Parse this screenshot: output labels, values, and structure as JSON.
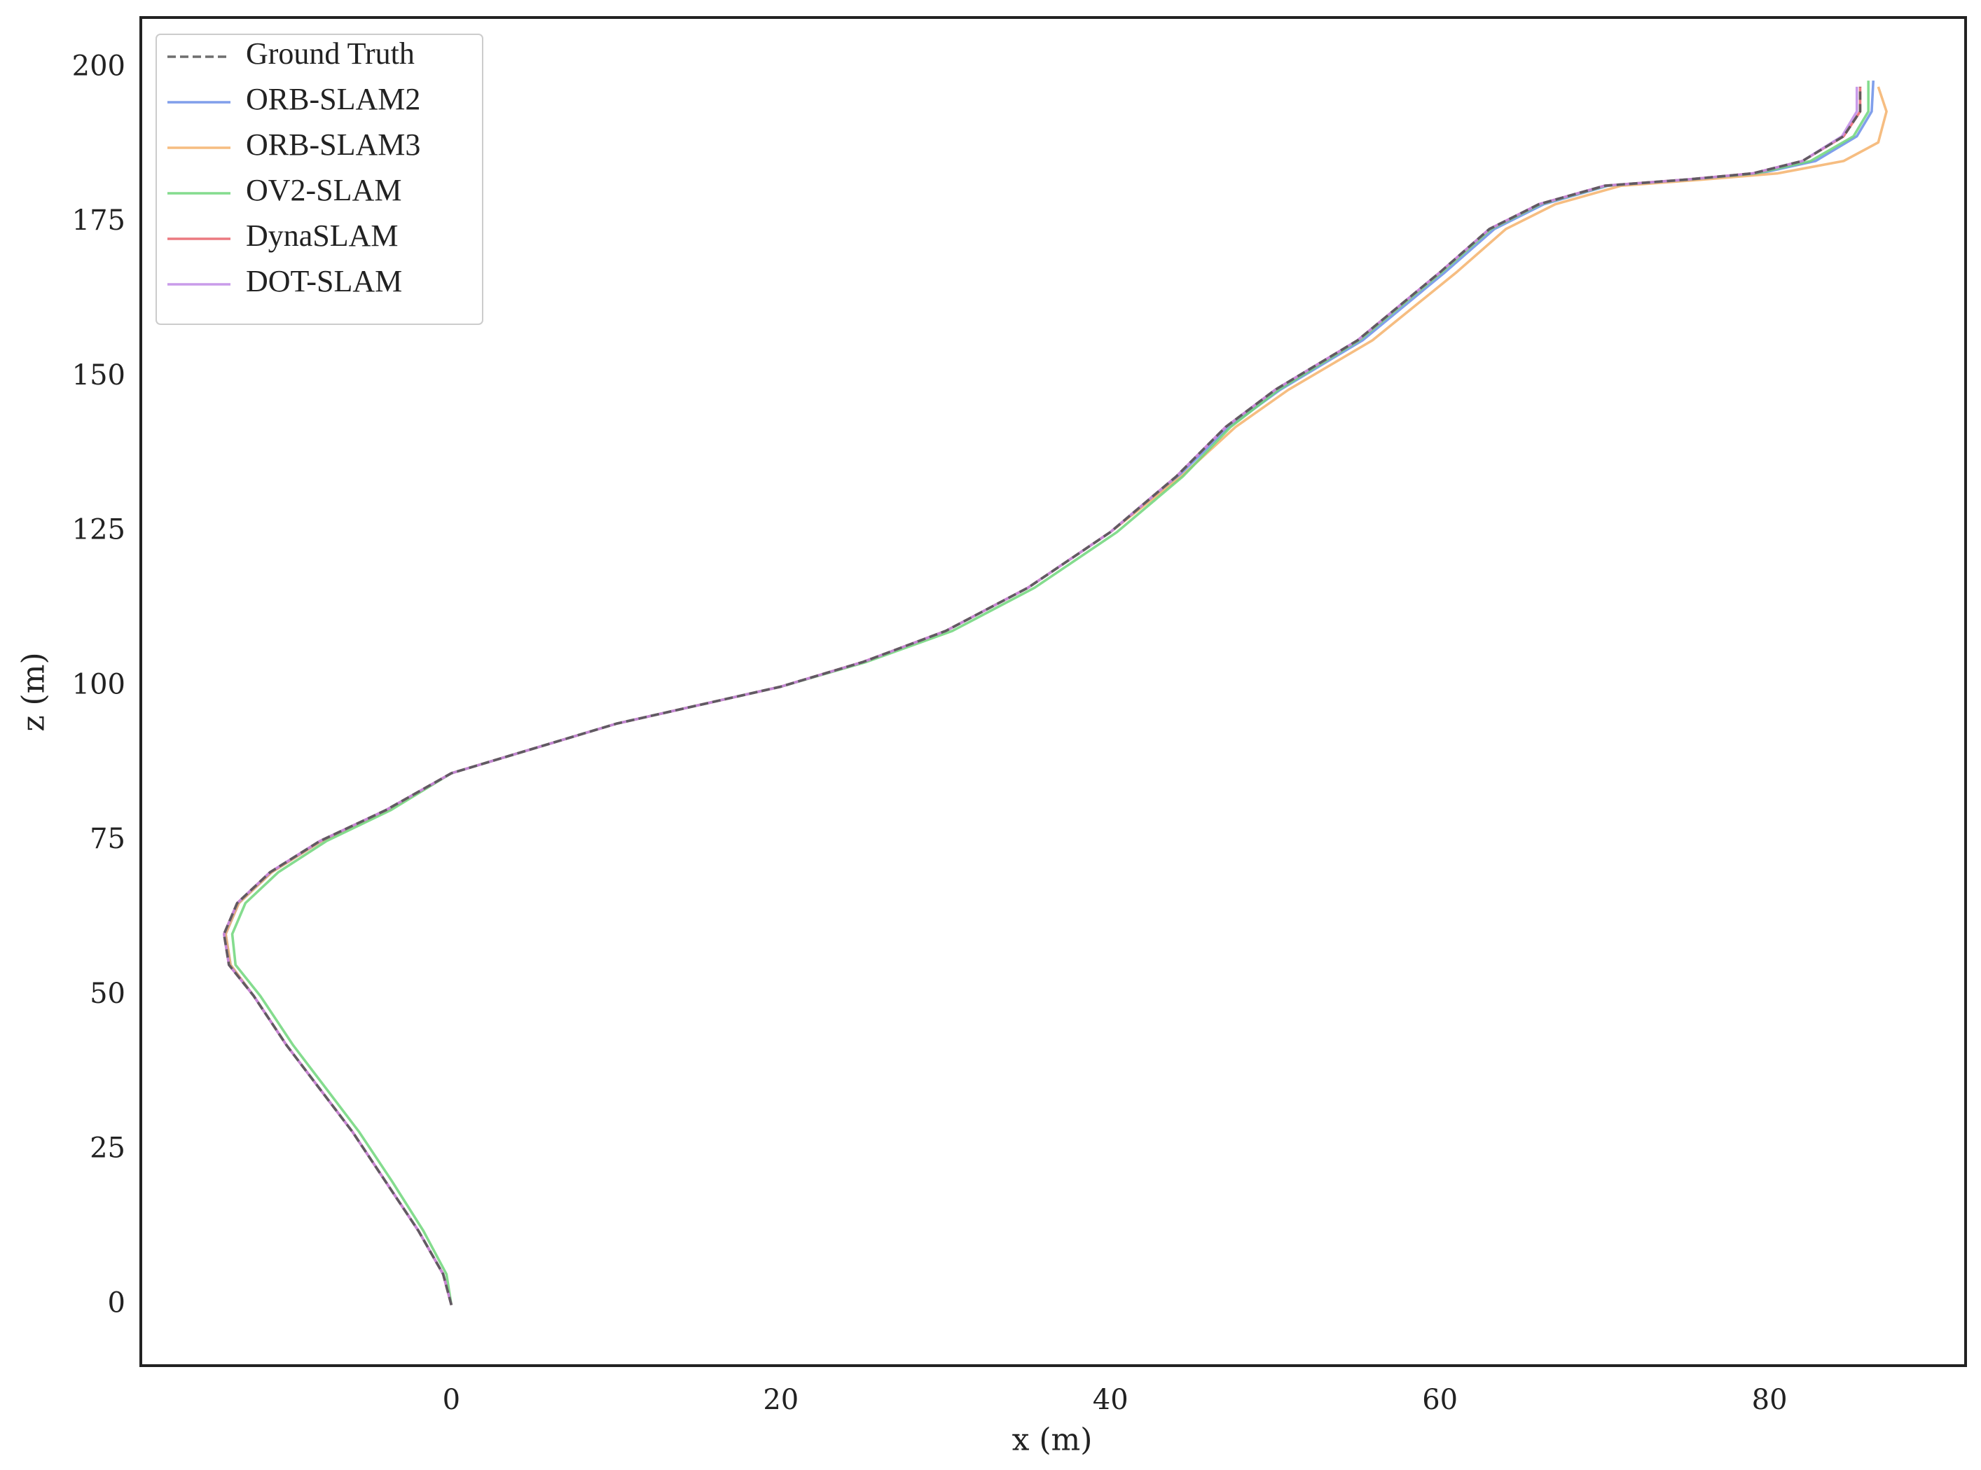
{
  "chart_data": {
    "type": "line",
    "xlabel": "x (m)",
    "ylabel": "z (m)",
    "xlim": [
      -18.85,
      91.9
    ],
    "ylim": [
      -9.8,
      208.2
    ],
    "xticks": [
      0,
      20,
      40,
      60,
      80
    ],
    "yticks": [
      0,
      25,
      50,
      75,
      100,
      125,
      150,
      175,
      200
    ],
    "grid": false,
    "legend": "upper left",
    "series": [
      {
        "name": "ORB-SLAM2",
        "color": "#6a8ee8",
        "x": [
          0,
          -0.5,
          -2,
          -4,
          -6,
          -8,
          -10,
          -12,
          -13.4,
          -13.7,
          -12.9,
          -10.9,
          -7.9,
          -3.9,
          0,
          5,
          10,
          15,
          20,
          25,
          30,
          35,
          40,
          44.1,
          47.2,
          50.3,
          55.3,
          60.3,
          63.3,
          66.3,
          70.2,
          75.2,
          79.4,
          82.8,
          85.3,
          86.2,
          86.3
        ],
        "values": [
          0,
          5,
          12,
          20,
          28,
          35,
          42,
          50,
          55,
          60,
          65,
          70,
          75,
          80,
          86,
          90,
          94,
          97,
          100,
          104,
          109,
          116,
          125,
          134,
          142,
          148,
          156,
          167,
          174,
          178,
          181,
          182,
          183,
          185,
          189,
          193,
          198
        ]
      },
      {
        "name": "ORB-SLAM3",
        "color": "#f5b26b",
        "x": [
          0,
          -0.5,
          -2,
          -4,
          -6,
          -8,
          -10,
          -12,
          -13.4,
          -13.7,
          -12.9,
          -10.9,
          -7.9,
          -3.9,
          0,
          5,
          10,
          15,
          20,
          25,
          30,
          35,
          40,
          44.3,
          47.6,
          50.8,
          55.9,
          61,
          64,
          67,
          71,
          76,
          80.5,
          84.5,
          86.6,
          87.1,
          86.6
        ],
        "values": [
          0,
          5,
          12,
          20,
          28,
          35,
          42,
          50,
          55,
          60,
          65,
          70,
          75,
          80,
          86,
          90,
          94,
          97,
          100,
          104,
          109,
          116,
          125,
          134,
          142,
          148,
          156,
          167,
          174,
          178,
          181,
          182,
          183,
          185,
          188,
          193,
          197
        ]
      },
      {
        "name": "OV2-SLAM",
        "color": "#6ed67a",
        "x": [
          0,
          -0.3,
          -1.7,
          -3.6,
          -5.6,
          -7.6,
          -9.6,
          -11.6,
          -13.1,
          -13.3,
          -12.5,
          -10.5,
          -7.6,
          -3.7,
          0,
          5,
          10,
          15,
          20,
          25.2,
          30.4,
          35.4,
          40.4,
          44.4,
          47.3,
          50.2,
          55.1,
          60.1,
          63.1,
          66.1,
          70.1,
          75.1,
          79.2,
          82.5,
          85.1,
          86,
          86
        ],
        "values": [
          0,
          5,
          12,
          20,
          28,
          35,
          42,
          50,
          55,
          60,
          65,
          70,
          75,
          80,
          86,
          90,
          94,
          97,
          100,
          104,
          109,
          116,
          125,
          134,
          142,
          148,
          156,
          167,
          174,
          178,
          181,
          182,
          183,
          185,
          189,
          193,
          198
        ]
      },
      {
        "name": "DynaSLAM",
        "color": "#e8636a",
        "x": [
          0,
          -0.5,
          -2,
          -4,
          -6,
          -8,
          -10,
          -12,
          -13.5,
          -13.8,
          -13,
          -11,
          -8,
          -4,
          0,
          5,
          10,
          15,
          20,
          25,
          30,
          35,
          40,
          44,
          47,
          50,
          55,
          60,
          63,
          66,
          70,
          75,
          79,
          82,
          84.5,
          85.5,
          85.5
        ],
        "values": [
          0,
          5,
          12,
          20,
          28,
          35,
          42,
          50,
          55,
          60,
          65,
          70,
          75,
          80,
          86,
          90,
          94,
          97,
          100,
          104,
          109,
          116,
          125,
          134,
          142,
          148,
          156,
          167,
          174,
          178,
          181,
          182,
          183,
          185,
          189,
          193,
          197
        ]
      },
      {
        "name": "DOT-SLAM",
        "color": "#c08ae6",
        "x": [
          0,
          -0.5,
          -2,
          -4,
          -6,
          -8,
          -10,
          -12,
          -13.5,
          -13.8,
          -13,
          -11,
          -8,
          -4,
          0,
          5,
          10,
          15,
          20,
          25,
          30,
          35,
          40,
          44,
          47,
          50,
          55,
          60,
          63,
          66,
          70,
          75,
          79,
          82,
          84.4,
          85.3,
          85.3
        ],
        "values": [
          0,
          5,
          12,
          20,
          28,
          35,
          42,
          50,
          55,
          60,
          65,
          70,
          75,
          80,
          86,
          90,
          94,
          97,
          100,
          104,
          109,
          116,
          125,
          134,
          142,
          148,
          156,
          167,
          174,
          178,
          181,
          182,
          183,
          185,
          189,
          193,
          197
        ]
      },
      {
        "name": "Ground Truth",
        "color": "#555555",
        "dashed": true,
        "x": [
          0,
          -0.5,
          -2,
          -4,
          -6,
          -8,
          -10,
          -12,
          -13.5,
          -13.8,
          -13,
          -11,
          -8,
          -4,
          0,
          5,
          10,
          15,
          20,
          25,
          30,
          35,
          40,
          44,
          47,
          50,
          55,
          60,
          63,
          66,
          70,
          75,
          79,
          82,
          84.5,
          85.5,
          85.5
        ],
        "values": [
          0,
          5,
          12,
          20,
          28,
          35,
          42,
          50,
          55,
          60,
          65,
          70,
          75,
          80,
          86,
          90,
          94,
          97,
          100,
          104,
          109,
          116,
          125,
          134,
          142,
          148,
          156,
          167,
          174,
          178,
          181,
          182,
          183,
          185,
          189,
          193,
          197
        ]
      }
    ],
    "legend_order": [
      5,
      0,
      1,
      2,
      3,
      4
    ]
  }
}
